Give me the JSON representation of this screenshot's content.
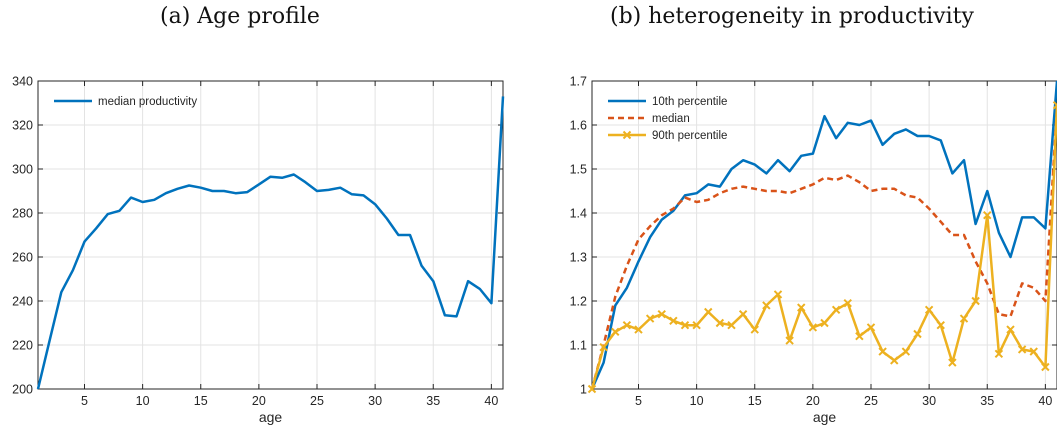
{
  "captions": {
    "left": "(a) Age profile",
    "right": "(b) heterogeneity in productivity"
  },
  "colors": {
    "blue": "#0072BD",
    "orange": "#D95319",
    "yellow": "#EDB120",
    "grid": "#e3e3e3",
    "axis": "#262626"
  },
  "chart_data": [
    {
      "type": "line",
      "title": "(a) Age profile",
      "xlabel": "age",
      "ylabel": "",
      "xlim": [
        1,
        41
      ],
      "ylim": [
        200,
        340
      ],
      "xticks": [
        5,
        10,
        15,
        20,
        25,
        30,
        35,
        40
      ],
      "yticks": [
        200,
        220,
        240,
        260,
        280,
        300,
        320,
        340
      ],
      "grid": true,
      "legend_position": "top-left",
      "x": [
        1,
        2,
        3,
        4,
        5,
        6,
        7,
        8,
        9,
        10,
        11,
        12,
        13,
        14,
        15,
        16,
        17,
        18,
        19,
        20,
        21,
        22,
        23,
        24,
        25,
        26,
        27,
        28,
        29,
        30,
        31,
        32,
        33,
        34,
        35,
        36,
        37,
        38,
        39,
        40,
        41
      ],
      "series": [
        {
          "name": "median productivity",
          "color": "#0072BD",
          "style": "solid",
          "marker": "none",
          "values": [
            200,
            222,
            244,
            254,
            267,
            273,
            279.5,
            281,
            287,
            285,
            286,
            289,
            291,
            292.5,
            291.5,
            290,
            290,
            289,
            289.5,
            293,
            296.5,
            296,
            297.5,
            294,
            290,
            290.5,
            291.5,
            288.5,
            288,
            284,
            277.5,
            270,
            270,
            256,
            249,
            233.5,
            233,
            249,
            245.5,
            239,
            333
          ]
        }
      ]
    },
    {
      "type": "line",
      "title": "(b) heterogeneity in productivity",
      "xlabel": "age",
      "ylabel": "",
      "xlim": [
        1,
        41
      ],
      "ylim": [
        1,
        1.7
      ],
      "xticks": [
        5,
        10,
        15,
        20,
        25,
        30,
        35,
        40
      ],
      "yticks": [
        "1",
        "1.1",
        "1.2",
        "1.3",
        "1.4",
        "1.5",
        "1.6",
        "1.7"
      ],
      "grid": true,
      "legend_position": "top-left",
      "x": [
        1,
        2,
        3,
        4,
        5,
        6,
        7,
        8,
        9,
        10,
        11,
        12,
        13,
        14,
        15,
        16,
        17,
        18,
        19,
        20,
        21,
        22,
        23,
        24,
        25,
        26,
        27,
        28,
        29,
        30,
        31,
        32,
        33,
        34,
        35,
        36,
        37,
        38,
        39,
        40,
        41
      ],
      "series": [
        {
          "name": "10th percentile",
          "color": "#0072BD",
          "style": "solid",
          "marker": "none",
          "values": [
            1.0,
            1.06,
            1.19,
            1.23,
            1.29,
            1.345,
            1.385,
            1.405,
            1.44,
            1.445,
            1.465,
            1.46,
            1.5,
            1.52,
            1.51,
            1.49,
            1.52,
            1.495,
            1.53,
            1.535,
            1.62,
            1.57,
            1.605,
            1.6,
            1.61,
            1.555,
            1.58,
            1.59,
            1.575,
            1.575,
            1.565,
            1.49,
            1.52,
            1.375,
            1.45,
            1.355,
            1.3,
            1.39,
            1.39,
            1.365,
            1.7
          ]
        },
        {
          "name": "median",
          "color": "#D95319",
          "style": "dashed",
          "marker": "none",
          "values": [
            1.0,
            1.1,
            1.21,
            1.28,
            1.34,
            1.37,
            1.395,
            1.41,
            1.435,
            1.425,
            1.43,
            1.445,
            1.455,
            1.46,
            1.455,
            1.45,
            1.45,
            1.445,
            1.455,
            1.465,
            1.48,
            1.475,
            1.485,
            1.47,
            1.45,
            1.455,
            1.455,
            1.44,
            1.435,
            1.41,
            1.38,
            1.35,
            1.35,
            1.29,
            1.24,
            1.17,
            1.165,
            1.24,
            1.23,
            1.2,
            1.64
          ]
        },
        {
          "name": "90th percentile",
          "color": "#EDB120",
          "style": "solid",
          "marker": "x",
          "values": [
            1.0,
            1.095,
            1.13,
            1.145,
            1.135,
            1.16,
            1.17,
            1.155,
            1.145,
            1.145,
            1.175,
            1.15,
            1.145,
            1.17,
            1.135,
            1.19,
            1.215,
            1.11,
            1.185,
            1.14,
            1.15,
            1.18,
            1.195,
            1.12,
            1.14,
            1.085,
            1.065,
            1.085,
            1.125,
            1.18,
            1.145,
            1.06,
            1.16,
            1.2,
            1.395,
            1.08,
            1.135,
            1.09,
            1.085,
            1.05,
            1.645
          ]
        }
      ]
    }
  ]
}
